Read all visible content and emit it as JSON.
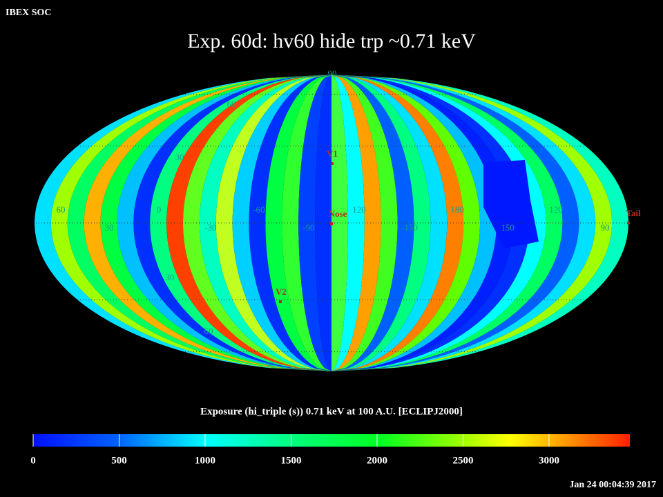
{
  "header": {
    "label": "IBEX SOC",
    "title": "Exp.   60d: hv60 hide trp ~0.71 keV",
    "timestamp": "Jan 24 00:04:39 2017"
  },
  "map": {
    "lat_labels": [
      "90",
      "60",
      "30",
      "30",
      "60",
      "90"
    ],
    "lon_labels": [
      "60",
      "30",
      "0",
      "-30",
      "-60",
      "-90",
      "120",
      "-150",
      "180",
      "150",
      "120",
      "90"
    ],
    "markers": [
      "V1",
      "Nose",
      "V2",
      "Tail"
    ]
  },
  "colorbar": {
    "title": "Exposure (hi_triple (s))  0.71 keV at 100 A.U. [ECLIPJ2000]",
    "range": [
      0,
      3470
    ],
    "ticks": [
      0,
      500,
      1000,
      1500,
      2000,
      2500,
      3000
    ]
  }
}
